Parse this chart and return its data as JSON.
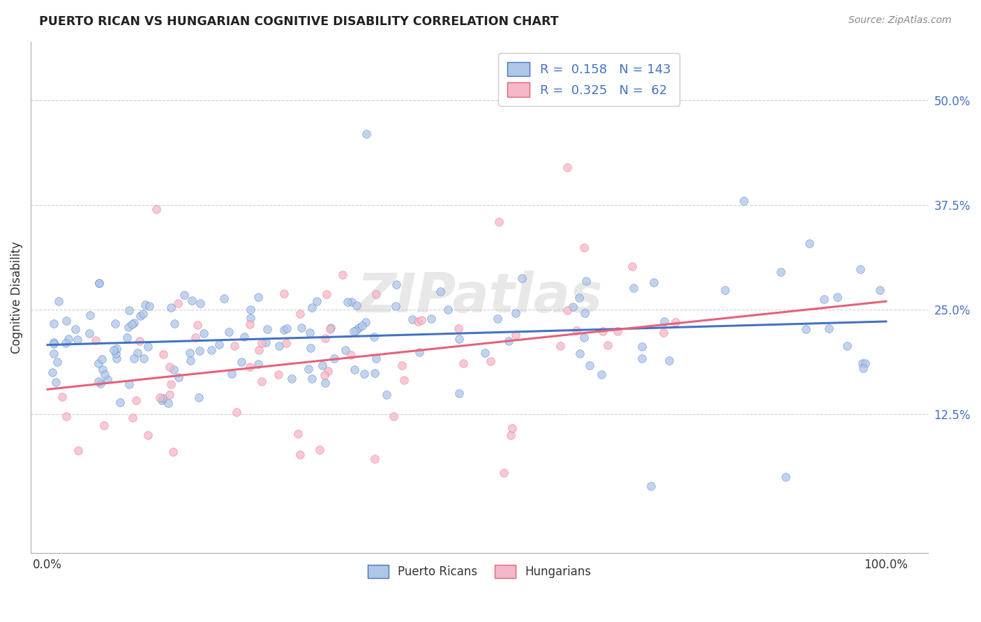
{
  "title": "PUERTO RICAN VS HUNGARIAN COGNITIVE DISABILITY CORRELATION CHART",
  "source": "Source: ZipAtlas.com",
  "ylabel": "Cognitive Disability",
  "blue_color": "#aec6e8",
  "pink_color": "#f4b8c8",
  "blue_line_color": "#4472c4",
  "pink_line_color": "#e8607a",
  "legend_text_color": "#4472c4",
  "legend_bottom_blue": "Puerto Ricans",
  "legend_bottom_pink": "Hungarians",
  "R_blue": 0.158,
  "N_blue": 143,
  "R_pink": 0.325,
  "N_pink": 62,
  "watermark": "ZIPatlas",
  "ytick_vals": [
    0.125,
    0.25,
    0.375,
    0.5
  ],
  "ytick_labels": [
    "12.5%",
    "25.0%",
    "37.5%",
    "50.0%"
  ],
  "xtick_vals": [
    0.0,
    0.25,
    0.5,
    0.75,
    1.0
  ],
  "xtick_labels": [
    "0.0%",
    "",
    "",
    "",
    "100.0%"
  ],
  "blue_intercept": 0.208,
  "blue_slope": 0.028,
  "pink_intercept": 0.155,
  "pink_slope": 0.105
}
